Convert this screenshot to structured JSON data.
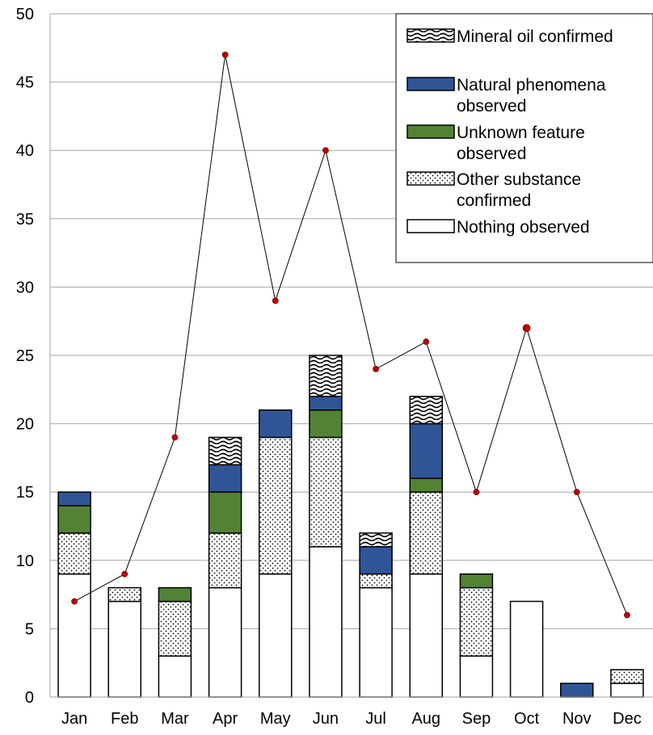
{
  "chart_data": {
    "type": "bar",
    "title": "",
    "xlabel": "",
    "ylabel": "",
    "categories": [
      "Jan",
      "Feb",
      "Mar",
      "Apr",
      "May",
      "Jun",
      "Jul",
      "Aug",
      "Sep",
      "Oct",
      "Nov",
      "Dec"
    ],
    "ylim": [
      0,
      50
    ],
    "yticks": [
      0,
      5,
      10,
      15,
      20,
      25,
      30,
      35,
      40,
      45,
      50
    ],
    "grid": true,
    "legend_position": "top-right",
    "series": [
      {
        "name": "Nothing observed",
        "pattern": "solid-white",
        "color": "#ffffff",
        "values": [
          9,
          7,
          3,
          8,
          9,
          11,
          8,
          9,
          3,
          7,
          0,
          1
        ]
      },
      {
        "name": "Other substance confirmed",
        "pattern": "dotted",
        "color": "#ffffff",
        "values": [
          3,
          1,
          4,
          4,
          10,
          8,
          1,
          6,
          5,
          0,
          0,
          1
        ]
      },
      {
        "name": "Unknown feature observed",
        "pattern": "solid",
        "color": "#548235",
        "values": [
          2,
          0,
          1,
          3,
          0,
          2,
          0,
          1,
          1,
          0,
          0,
          0
        ]
      },
      {
        "name": "Natural phenomena observed",
        "pattern": "solid",
        "color": "#2f5597",
        "values": [
          1,
          0,
          0,
          2,
          2,
          1,
          2,
          4,
          0,
          0,
          1,
          0
        ]
      },
      {
        "name": "Mineral oil confirmed",
        "pattern": "wave",
        "color": "#ffffff",
        "values": [
          0,
          0,
          0,
          2,
          0,
          3,
          1,
          2,
          0,
          0,
          0,
          0
        ]
      }
    ],
    "line": {
      "type": "line",
      "line_color": "#000000",
      "marker_color": "#c00000",
      "values": [
        7,
        9,
        19,
        47,
        29,
        40,
        24,
        26,
        15,
        27,
        15,
        6
      ]
    },
    "legend": [
      "Mineral oil confirmed",
      "Natural phenomena observed",
      "Unknown feature observed",
      "Other substance confirmed",
      "Nothing observed"
    ]
  }
}
